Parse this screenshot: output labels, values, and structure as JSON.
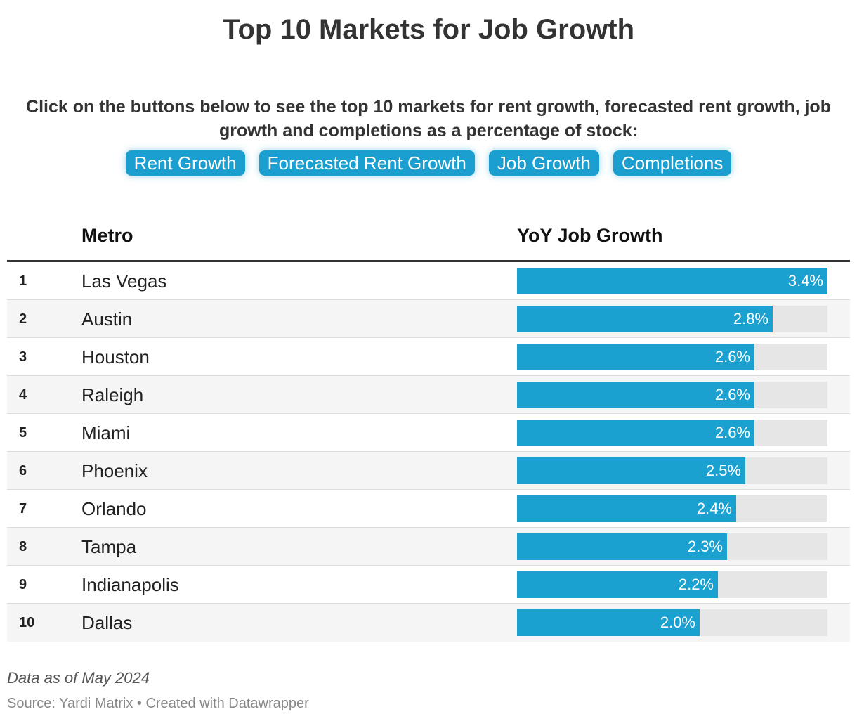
{
  "title": "Top 10 Markets for Job Growth",
  "subtitle": "Click on the buttons below to see the top 10 markets for rent growth, forecasted rent growth, job growth and completions as a percentage of stock:",
  "buttons": [
    "Rent Growth",
    "Forecasted Rent Growth",
    "Job Growth",
    "Completions"
  ],
  "columns": {
    "metro": "Metro",
    "growth": "YoY Job Growth"
  },
  "colors": {
    "bar": "#1aa1d0",
    "track": "#e6e6e6",
    "button": "#1a9fd0"
  },
  "chart_data": {
    "type": "bar",
    "title": "Top 10 Markets for Job Growth",
    "xlabel": "YoY Job Growth",
    "ylabel": "Metro",
    "xlim": [
      0,
      3.4
    ],
    "ranks": [
      "1",
      "2",
      "3",
      "4",
      "5",
      "6",
      "7",
      "8",
      "9",
      "10"
    ],
    "categories": [
      "Las Vegas",
      "Austin",
      "Houston",
      "Raleigh",
      "Miami",
      "Phoenix",
      "Orlando",
      "Tampa",
      "Indianapolis",
      "Dallas"
    ],
    "values": [
      3.4,
      2.8,
      2.6,
      2.6,
      2.6,
      2.5,
      2.4,
      2.3,
      2.2,
      2.0
    ],
    "labels": [
      "3.4%",
      "2.8%",
      "2.6%",
      "2.6%",
      "2.6%",
      "2.5%",
      "2.4%",
      "2.3%",
      "2.2%",
      "2.0%"
    ]
  },
  "notes": "Data as of May 2024",
  "source": "Source: Yardi Matrix • Created with Datawrapper"
}
